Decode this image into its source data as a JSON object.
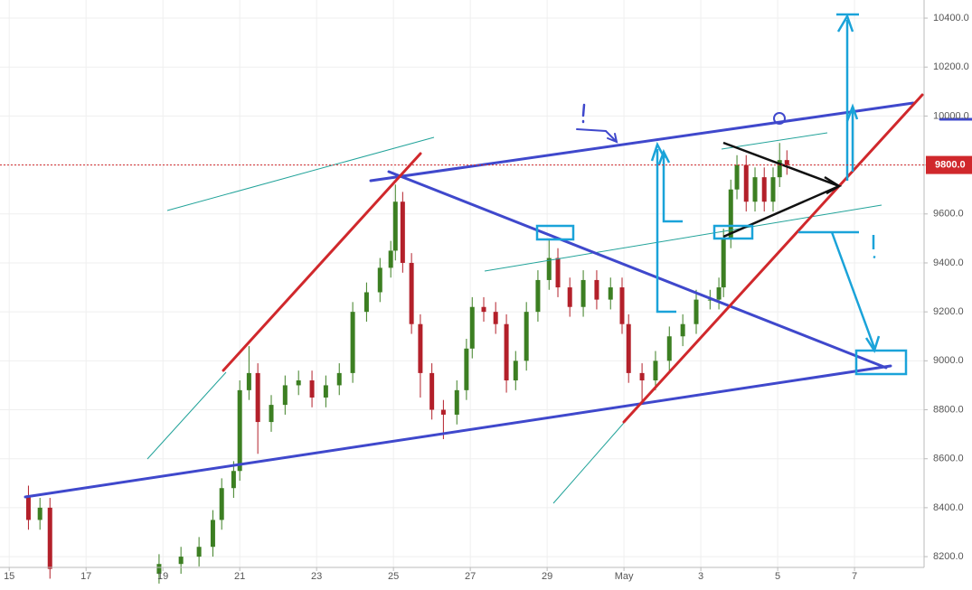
{
  "chart_data": {
    "type": "candlestick",
    "x": [
      0.5,
      0.8,
      1.06,
      3.9,
      4.47,
      4.94,
      5.3,
      5.53,
      5.84,
      6.0,
      6.24,
      6.47,
      6.82,
      7.18,
      7.53,
      7.88,
      8.24,
      8.59,
      8.94,
      9.3,
      9.65,
      9.93,
      10.05,
      10.24,
      10.47,
      10.7,
      11.0,
      11.3,
      11.65,
      11.9,
      12.05,
      12.35,
      12.66,
      12.94,
      13.18,
      13.46,
      13.76,
      14.05,
      14.28,
      14.59,
      14.94,
      15.29,
      15.65,
      15.95,
      16.12,
      16.47,
      16.82,
      17.18,
      17.53,
      17.88,
      18.24,
      18.47,
      18.59,
      18.78,
      18.94,
      19.18,
      19.41,
      19.65,
      19.88,
      20.05,
      20.24
    ],
    "open": [
      8450,
      8350,
      8400,
      8130,
      8170,
      8200,
      8240,
      8350,
      8480,
      8550,
      8880,
      8950,
      8750,
      8820,
      8900,
      8920,
      8850,
      8900,
      8950,
      9200,
      9280,
      9380,
      9450,
      9650,
      9400,
      9150,
      8950,
      8800,
      8780,
      8880,
      9050,
      9220,
      9200,
      9150,
      8920,
      9000,
      9200,
      9330,
      9420,
      9300,
      9220,
      9330,
      9250,
      9300,
      9150,
      8950,
      8920,
      9000,
      9100,
      9150,
      9250,
      9250,
      9300,
      9500,
      9700,
      9800,
      9650,
      9750,
      9650,
      9750,
      9820
    ],
    "high": [
      8490,
      8440,
      8440,
      8210,
      8240,
      8280,
      8390,
      8520,
      8590,
      8920,
      9060,
      8990,
      8860,
      8940,
      8960,
      8960,
      8940,
      8990,
      9240,
      9320,
      9420,
      9490,
      9720,
      9690,
      9440,
      9190,
      8990,
      8840,
      8920,
      9090,
      9260,
      9260,
      9240,
      9190,
      9040,
      9240,
      9370,
      9500,
      9460,
      9340,
      9370,
      9370,
      9340,
      9340,
      9190,
      8990,
      9040,
      9140,
      9190,
      9290,
      9290,
      9340,
      9540,
      9740,
      9840,
      9840,
      9790,
      9790,
      9790,
      9890,
      9860
    ],
    "low": [
      8310,
      8310,
      8110,
      8090,
      8130,
      8160,
      8200,
      8310,
      8440,
      8510,
      8840,
      8620,
      8710,
      8780,
      8860,
      8810,
      8810,
      8860,
      8910,
      9160,
      9240,
      9340,
      9410,
      9360,
      9110,
      8850,
      8760,
      8680,
      8740,
      8840,
      9010,
      9160,
      9110,
      8870,
      8880,
      8960,
      9160,
      9290,
      9260,
      9180,
      9180,
      9210,
      9210,
      9110,
      8910,
      8830,
      8880,
      8960,
      9060,
      9110,
      9210,
      9210,
      9260,
      9460,
      9660,
      9610,
      9610,
      9610,
      9610,
      9710,
      9760
    ],
    "close": [
      8350,
      8400,
      8150,
      8170,
      8200,
      8240,
      8350,
      8480,
      8550,
      8880,
      8950,
      8750,
      8820,
      8900,
      8920,
      8850,
      8900,
      8950,
      9200,
      9280,
      9380,
      9450,
      9650,
      9400,
      9150,
      8950,
      8800,
      8780,
      8880,
      9050,
      9220,
      9200,
      9150,
      8920,
      9000,
      9200,
      9330,
      9420,
      9300,
      9220,
      9330,
      9250,
      9300,
      9150,
      8950,
      8920,
      9000,
      9100,
      9150,
      9250,
      9250,
      9300,
      9500,
      9700,
      9800,
      9650,
      9750,
      9650,
      9750,
      9820,
      9800
    ],
    "up_color": "#3c7f22",
    "down_color": "#b3202a",
    "xlim": [
      -0.24,
      23.81
    ],
    "xticks": [
      {
        "value": 0,
        "label": "15"
      },
      {
        "value": 2,
        "label": "17"
      },
      {
        "value": 4,
        "label": "19"
      },
      {
        "value": 6,
        "label": "21"
      },
      {
        "value": 8,
        "label": "23"
      },
      {
        "value": 10,
        "label": "25"
      },
      {
        "value": 12,
        "label": "27"
      },
      {
        "value": 14,
        "label": "29"
      },
      {
        "value": 16,
        "label": "May"
      },
      {
        "value": 18,
        "label": "3"
      },
      {
        "value": 20,
        "label": "5"
      },
      {
        "value": 22,
        "label": "7"
      }
    ],
    "ylim": [
      8156,
      10474
    ],
    "yticks": [
      {
        "value": 8200,
        "label": "8200.0"
      },
      {
        "value": 8400,
        "label": "8400.0"
      },
      {
        "value": 8600,
        "label": "8600.0"
      },
      {
        "value": 8800,
        "label": "8800.0"
      },
      {
        "value": 9000,
        "label": "9000.0"
      },
      {
        "value": 9200,
        "label": "9200.0"
      },
      {
        "value": 9400,
        "label": "9400.0"
      },
      {
        "value": 9600,
        "label": "9600.0"
      },
      {
        "value": 9800,
        "label": "9800.0"
      },
      {
        "value": 10000,
        "label": "10000.0"
      },
      {
        "value": 10200,
        "label": "10200.0"
      },
      {
        "value": 10400,
        "label": "10400.0"
      }
    ],
    "grid": true,
    "price_line": {
      "value": 9800,
      "label": "9800.0",
      "color": "#d0282c"
    }
  }
}
